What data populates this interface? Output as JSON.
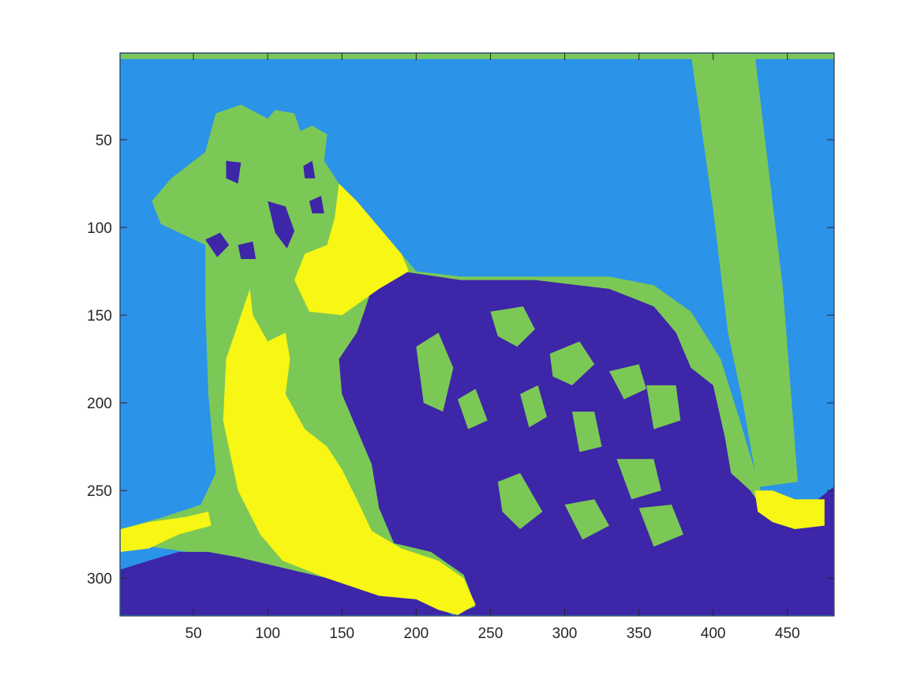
{
  "chart_data": {
    "type": "heatmap",
    "description_kind": "segmentation label image",
    "title": "",
    "xlabel": "",
    "ylabel": "",
    "image_size": [
      481,
      321
    ],
    "xlim": [
      0.5,
      481.5
    ],
    "ylim": [
      0.5,
      321.5
    ],
    "y_direction": "reverse",
    "xticks": [
      50,
      100,
      150,
      200,
      250,
      300,
      350,
      400,
      450
    ],
    "yticks": [
      50,
      100,
      150,
      200,
      250,
      300
    ],
    "xtick_labels": [
      "50",
      "100",
      "150",
      "200",
      "250",
      "300",
      "350",
      "400",
      "450"
    ],
    "ytick_labels": [
      "50",
      "100",
      "150",
      "200",
      "250",
      "300"
    ],
    "classes": [
      {
        "label": 1,
        "color": "#3d26a8"
      },
      {
        "label": 2,
        "color": "#2b93e8"
      },
      {
        "label": 3,
        "color": "#7cc856"
      },
      {
        "label": 4,
        "color": "#f8f614"
      }
    ]
  },
  "regions": {
    "background_color": "#2b93e8",
    "dark_color": "#3d26a8",
    "green_color": "#7cc856",
    "yellow_color": "#f8f614",
    "green": [
      [
        [
          1,
          1
        ],
        [
          481,
          1
        ],
        [
          481,
          4
        ],
        [
          1,
          4
        ]
      ],
      [
        [
          385,
          1
        ],
        [
          428,
          1
        ],
        [
          447,
          135
        ],
        [
          457,
          245
        ],
        [
          430,
          248
        ],
        [
          420,
          200
        ],
        [
          410,
          160
        ],
        [
          400,
          90
        ]
      ],
      [
        [
          22,
          85
        ],
        [
          35,
          72
        ],
        [
          58,
          57
        ],
        [
          65,
          35
        ],
        [
          82,
          30
        ],
        [
          100,
          38
        ],
        [
          105,
          33
        ],
        [
          118,
          35
        ],
        [
          122,
          45
        ],
        [
          130,
          42
        ],
        [
          140,
          47
        ],
        [
          138,
          62
        ],
        [
          148,
          75
        ],
        [
          160,
          85
        ],
        [
          175,
          100
        ],
        [
          190,
          115
        ],
        [
          200,
          125
        ],
        [
          230,
          128
        ],
        [
          280,
          128
        ],
        [
          330,
          128
        ],
        [
          360,
          133
        ],
        [
          385,
          148
        ],
        [
          405,
          175
        ],
        [
          418,
          210
        ],
        [
          432,
          250
        ],
        [
          447,
          262
        ],
        [
          447,
          290
        ],
        [
          425,
          300
        ],
        [
          400,
          303
        ],
        [
          370,
          303
        ],
        [
          340,
          305
        ],
        [
          300,
          310
        ],
        [
          260,
          318
        ],
        [
          230,
          318
        ],
        [
          190,
          312
        ],
        [
          150,
          305
        ],
        [
          110,
          297
        ],
        [
          70,
          288
        ],
        [
          30,
          283
        ],
        [
          1,
          280
        ],
        [
          1,
          272
        ],
        [
          30,
          265
        ],
        [
          55,
          258
        ],
        [
          65,
          240
        ],
        [
          60,
          195
        ],
        [
          58,
          145
        ],
        [
          58,
          110
        ],
        [
          28,
          98
        ]
      ]
    ],
    "yellow": [
      [
        [
          148,
          75
        ],
        [
          160,
          85
        ],
        [
          175,
          100
        ],
        [
          190,
          115
        ],
        [
          195,
          125
        ],
        [
          175,
          135
        ],
        [
          150,
          150
        ],
        [
          128,
          148
        ],
        [
          118,
          130
        ],
        [
          125,
          115
        ],
        [
          140,
          110
        ],
        [
          145,
          95
        ]
      ],
      [
        [
          88,
          135
        ],
        [
          82,
          150
        ],
        [
          72,
          175
        ],
        [
          70,
          210
        ],
        [
          80,
          250
        ],
        [
          95,
          275
        ],
        [
          110,
          290
        ],
        [
          140,
          300
        ],
        [
          175,
          310
        ],
        [
          200,
          312
        ],
        [
          215,
          318
        ],
        [
          228,
          321
        ],
        [
          240,
          315
        ],
        [
          232,
          300
        ],
        [
          215,
          290
        ],
        [
          190,
          283
        ],
        [
          170,
          273
        ],
        [
          160,
          255
        ],
        [
          150,
          238
        ],
        [
          140,
          225
        ],
        [
          125,
          215
        ],
        [
          112,
          195
        ],
        [
          115,
          175
        ],
        [
          112,
          160
        ],
        [
          100,
          165
        ],
        [
          90,
          150
        ]
      ],
      [
        [
          1,
          272
        ],
        [
          20,
          268
        ],
        [
          45,
          265
        ],
        [
          60,
          262
        ],
        [
          62,
          270
        ],
        [
          40,
          275
        ],
        [
          20,
          283
        ],
        [
          1,
          285
        ]
      ],
      [
        [
          428,
          250
        ],
        [
          440,
          250
        ],
        [
          455,
          255
        ],
        [
          475,
          255
        ],
        [
          475,
          270
        ],
        [
          455,
          272
        ],
        [
          440,
          268
        ],
        [
          430,
          262
        ]
      ]
    ],
    "dark": [
      [
        [
          170,
          135
        ],
        [
          190,
          125
        ],
        [
          230,
          130
        ],
        [
          280,
          130
        ],
        [
          330,
          135
        ],
        [
          360,
          145
        ],
        [
          375,
          160
        ],
        [
          385,
          180
        ],
        [
          400,
          190
        ],
        [
          408,
          220
        ],
        [
          412,
          240
        ],
        [
          425,
          250
        ],
        [
          440,
          268
        ],
        [
          460,
          262
        ],
        [
          481,
          248
        ],
        [
          481,
          321
        ],
        [
          1,
          321
        ],
        [
          1,
          295
        ],
        [
          20,
          290
        ],
        [
          40,
          285
        ],
        [
          60,
          285
        ],
        [
          80,
          288
        ],
        [
          100,
          292
        ],
        [
          130,
          298
        ],
        [
          150,
          302
        ],
        [
          175,
          308
        ],
        [
          200,
          310
        ],
        [
          212,
          316
        ],
        [
          225,
          321
        ],
        [
          240,
          316
        ],
        [
          232,
          298
        ],
        [
          210,
          285
        ],
        [
          185,
          280
        ],
        [
          175,
          260
        ],
        [
          170,
          235
        ],
        [
          160,
          215
        ],
        [
          150,
          195
        ],
        [
          148,
          175
        ],
        [
          160,
          160
        ],
        [
          165,
          148
        ]
      ],
      [
        [
          72,
          62
        ],
        [
          82,
          63
        ],
        [
          80,
          75
        ],
        [
          72,
          72
        ]
      ],
      [
        [
          58,
          107
        ],
        [
          68,
          103
        ],
        [
          74,
          110
        ],
        [
          66,
          117
        ]
      ],
      [
        [
          100,
          85
        ],
        [
          112,
          88
        ],
        [
          118,
          102
        ],
        [
          113,
          112
        ],
        [
          105,
          103
        ]
      ],
      [
        [
          124,
          65
        ],
        [
          130,
          62
        ],
        [
          132,
          72
        ],
        [
          125,
          72
        ]
      ],
      [
        [
          128,
          85
        ],
        [
          136,
          82
        ],
        [
          138,
          92
        ],
        [
          130,
          92
        ]
      ],
      [
        [
          80,
          110
        ],
        [
          90,
          108
        ],
        [
          92,
          118
        ],
        [
          82,
          118
        ]
      ]
    ],
    "green_patches": [
      [
        [
          250,
          148
        ],
        [
          272,
          145
        ],
        [
          280,
          158
        ],
        [
          268,
          168
        ],
        [
          255,
          162
        ]
      ],
      [
        [
          290,
          172
        ],
        [
          310,
          165
        ],
        [
          320,
          178
        ],
        [
          305,
          190
        ],
        [
          292,
          185
        ]
      ],
      [
        [
          330,
          182
        ],
        [
          350,
          178
        ],
        [
          355,
          192
        ],
        [
          340,
          198
        ]
      ],
      [
        [
          355,
          190
        ],
        [
          375,
          190
        ],
        [
          378,
          210
        ],
        [
          360,
          215
        ]
      ],
      [
        [
          200,
          168
        ],
        [
          215,
          160
        ],
        [
          225,
          180
        ],
        [
          218,
          205
        ],
        [
          205,
          200
        ]
      ],
      [
        [
          228,
          198
        ],
        [
          240,
          192
        ],
        [
          248,
          210
        ],
        [
          235,
          215
        ]
      ],
      [
        [
          270,
          195
        ],
        [
          282,
          190
        ],
        [
          288,
          208
        ],
        [
          276,
          214
        ]
      ],
      [
        [
          305,
          205
        ],
        [
          320,
          205
        ],
        [
          325,
          225
        ],
        [
          310,
          228
        ]
      ],
      [
        [
          335,
          232
        ],
        [
          360,
          232
        ],
        [
          365,
          250
        ],
        [
          345,
          255
        ]
      ],
      [
        [
          255,
          245
        ],
        [
          270,
          240
        ],
        [
          285,
          262
        ],
        [
          270,
          272
        ],
        [
          258,
          262
        ]
      ],
      [
        [
          300,
          258
        ],
        [
          320,
          255
        ],
        [
          330,
          270
        ],
        [
          312,
          278
        ]
      ],
      [
        [
          350,
          260
        ],
        [
          372,
          258
        ],
        [
          380,
          275
        ],
        [
          360,
          282
        ]
      ]
    ]
  }
}
